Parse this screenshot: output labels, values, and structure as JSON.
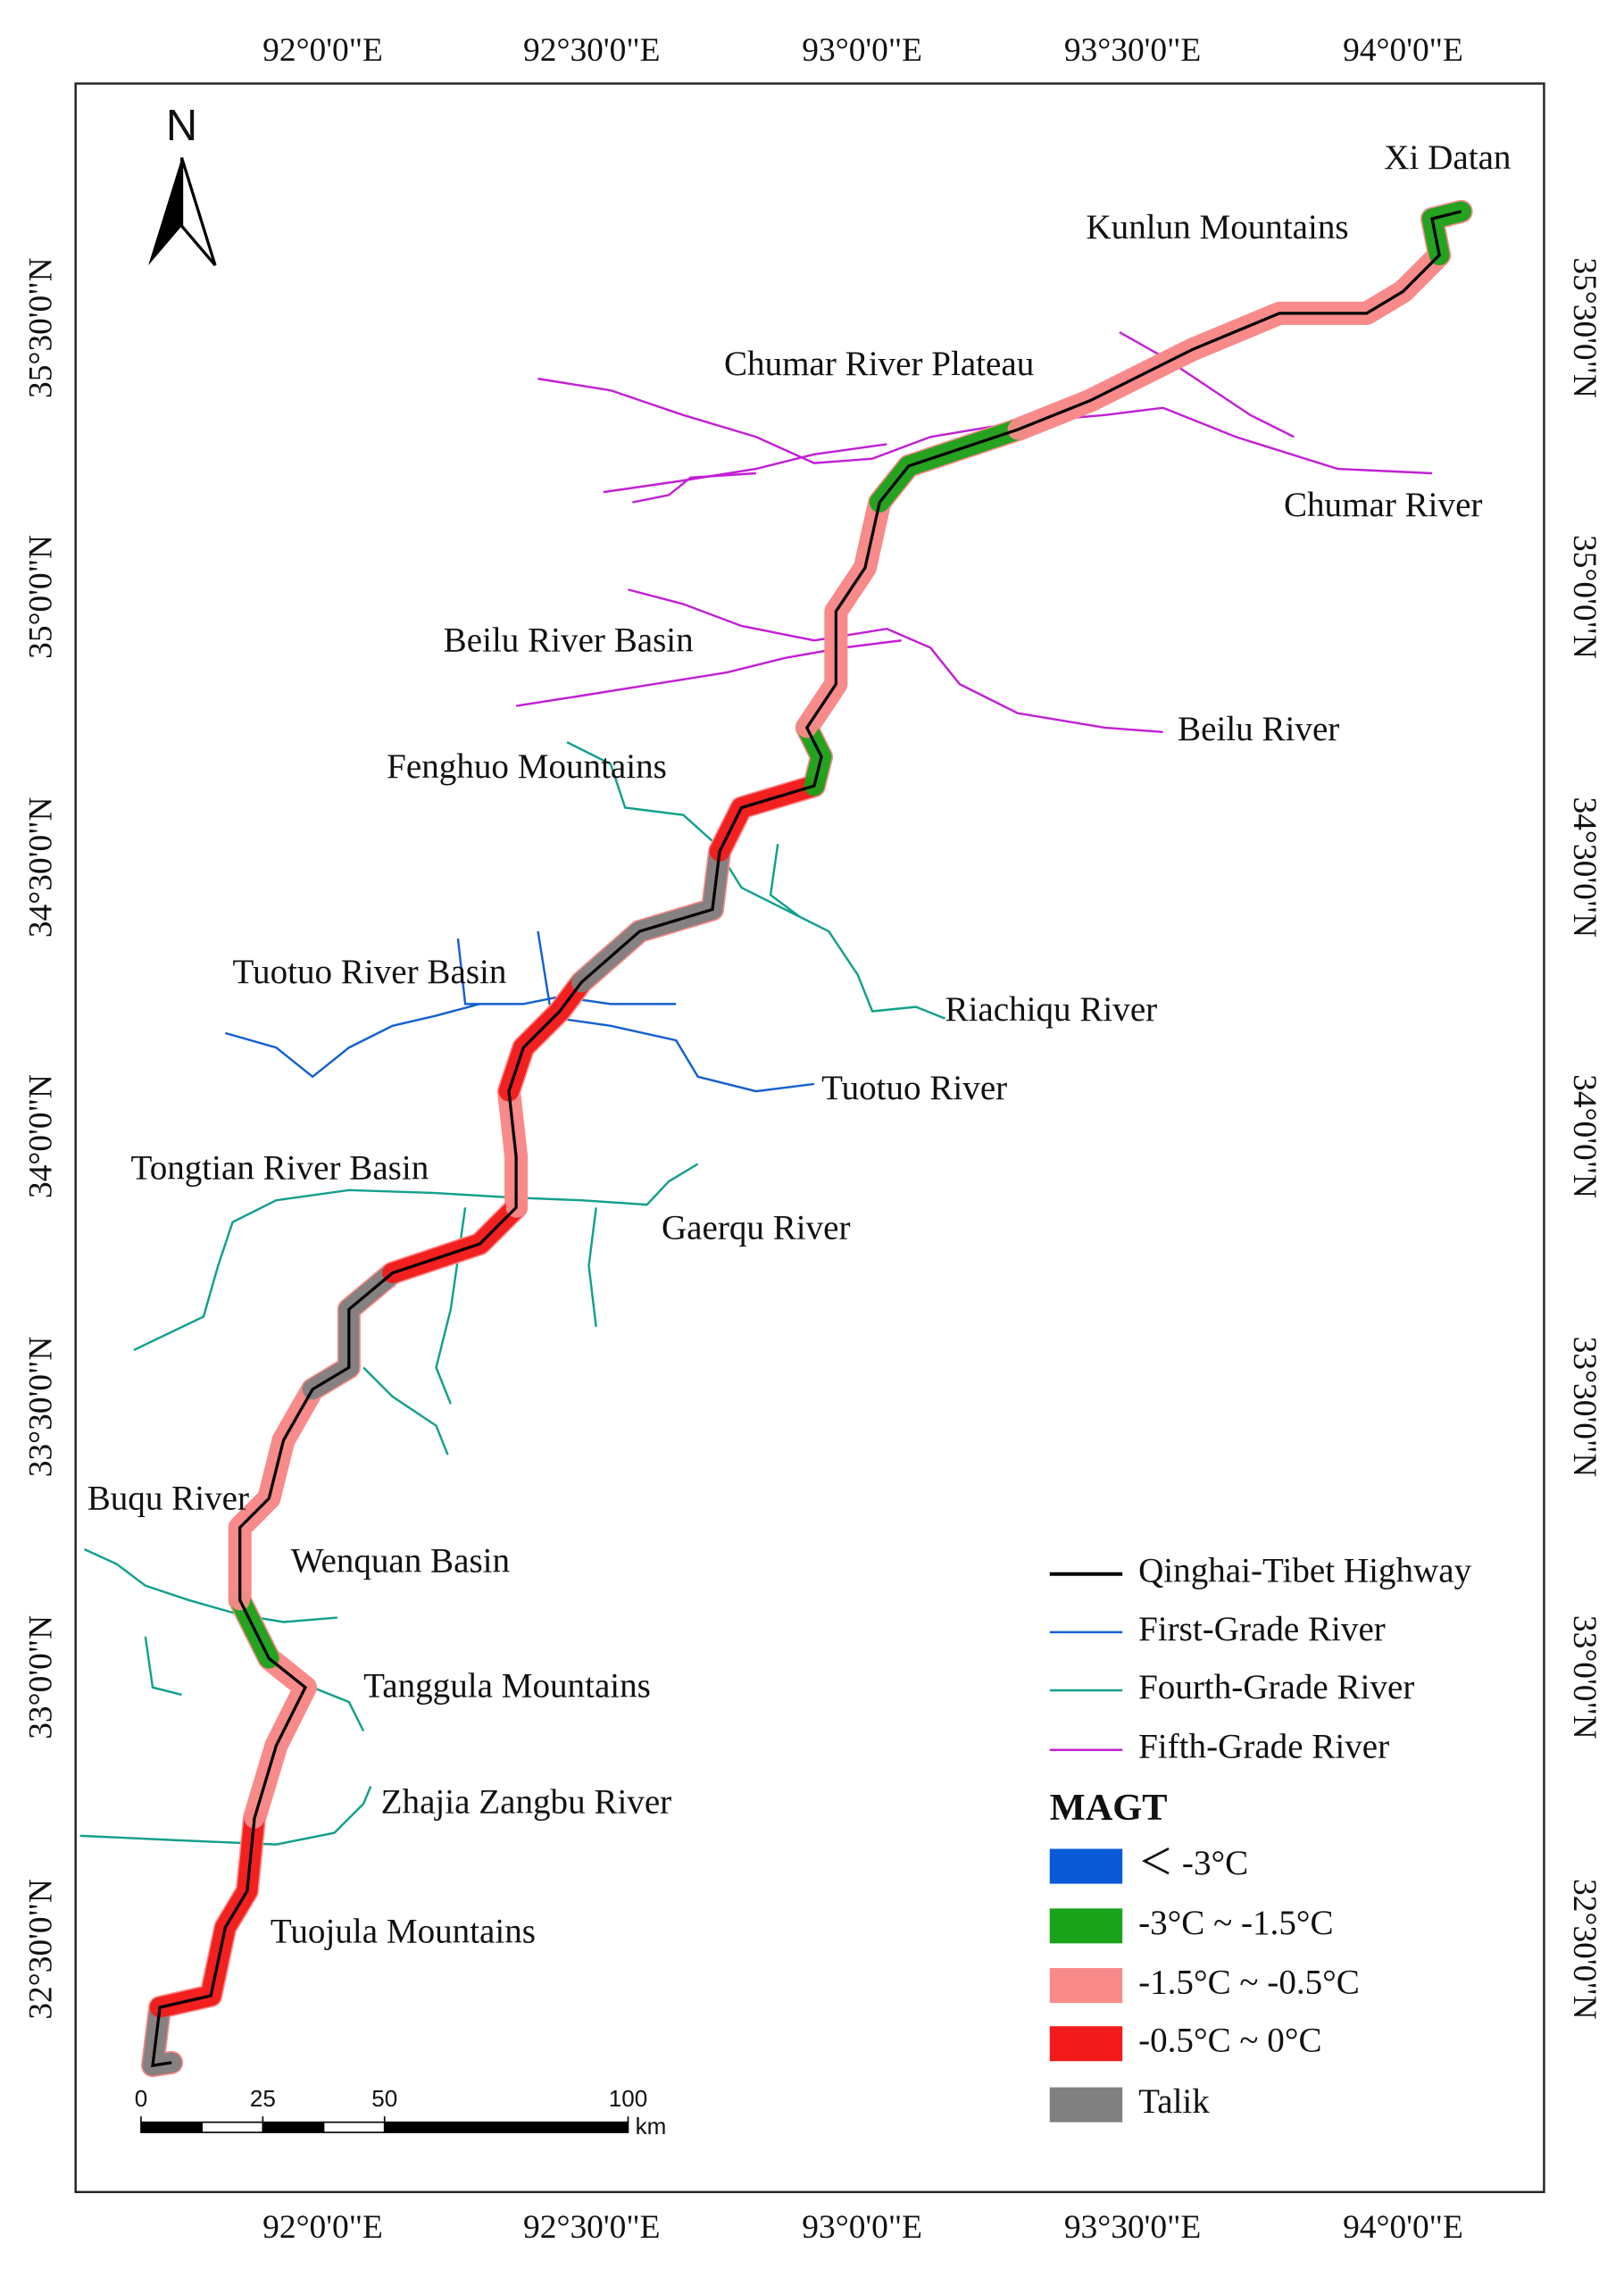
{
  "north_arrow": "N",
  "lon_ticks": [
    "92°0'0\"E",
    "92°30'0\"E",
    "93°0'0\"E",
    "93°30'0\"E",
    "94°0'0\"E"
  ],
  "lat_ticks": [
    "35°30'0\"N",
    "35°0'0\"N",
    "34°30'0\"N",
    "34°0'0\"N",
    "33°30'0\"N",
    "33°0'0\"N",
    "32°30'0\"N"
  ],
  "places": [
    "Xi Datan",
    "Kunlun Mountains",
    "Chumar River Plateau",
    "Chumar River",
    "Beilu River Basin",
    "Beilu River",
    "Fenghuo Mountains",
    "Tuotuo River Basin",
    "Riachiqu River",
    "Tuotuo River",
    "Tongtian River Basin",
    "Gaerqu River",
    "Buqu River",
    "Wenquan Basin",
    "Tanggula Mountains",
    "Zhajia Zangbu River",
    "Tuojula Mountains"
  ],
  "legend": {
    "lines": [
      {
        "label": "Qinghai-Tibet Highway",
        "color": "#000000"
      },
      {
        "label": "First-Grade River",
        "color": "#1560d0"
      },
      {
        "label": "Fourth-Grade River",
        "color": "#13a08a"
      },
      {
        "label": "Fifth-Grade River",
        "color": "#c21fd6"
      }
    ],
    "magt_title": "MAGT",
    "magt": [
      {
        "label": "＜ -3°C",
        "color": "#0a5ad6"
      },
      {
        "label": "-3°C ~ -1.5°C",
        "color": "#19a319"
      },
      {
        "label": "-1.5°C ~ -0.5°C",
        "color": "#f88a8a"
      },
      {
        "label": "-0.5°C ~ 0°C",
        "color": "#f21a1a"
      },
      {
        "label": "Talik",
        "color": "#808080"
      }
    ]
  },
  "scale_bar": {
    "ticks": [
      0,
      25,
      50,
      100
    ],
    "unit": "km"
  }
}
